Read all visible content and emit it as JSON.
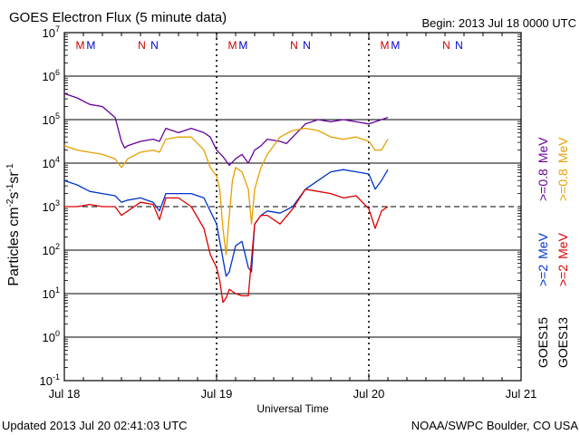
{
  "chart_data": {
    "type": "line",
    "title": "GOES Electron Flux (5 minute data)",
    "begin_label": "Begin: 2013 Jul 18 0000 UTC",
    "xlabel": "Universal Time",
    "ylabel_parts": {
      "pre": "Particles cm",
      "e1": "-2",
      "s": "s",
      "e2": "-1",
      "sr": "sr",
      "e3": "-1"
    },
    "x_ticks": [
      "Jul 18",
      "Jul 19",
      "Jul 20",
      "Jul 21"
    ],
    "xlim": [
      0,
      72
    ],
    "ylim_log10": [
      -1,
      7
    ],
    "y_ticks": [
      {
        "base": "10",
        "exp": "7"
      },
      {
        "base": "10",
        "exp": "6"
      },
      {
        "base": "10",
        "exp": "5"
      },
      {
        "base": "10",
        "exp": "4"
      },
      {
        "base": "10",
        "exp": "3"
      },
      {
        "base": "10",
        "exp": "2"
      },
      {
        "base": "10",
        "exp": "1"
      },
      {
        "base": "10",
        "exp": "0"
      },
      {
        "base": "10",
        "exp": "-1"
      }
    ],
    "threshold_log10": 3,
    "mn_markers": [
      {
        "label": "M",
        "hour": 2.5,
        "color": "#cc0000"
      },
      {
        "label": "M",
        "hour": 4.2,
        "color": "#0000cc"
      },
      {
        "label": "N",
        "hour": 12.2,
        "color": "#cc0000"
      },
      {
        "label": "N",
        "hour": 14.2,
        "color": "#0000cc"
      },
      {
        "label": "M",
        "hour": 26.5,
        "color": "#cc0000"
      },
      {
        "label": "M",
        "hour": 28.2,
        "color": "#0000cc"
      },
      {
        "label": "N",
        "hour": 36.2,
        "color": "#cc0000"
      },
      {
        "label": "N",
        "hour": 38.2,
        "color": "#0000cc"
      },
      {
        "label": "M",
        "hour": 50.5,
        "color": "#cc0000"
      },
      {
        "label": "M",
        "hour": 52.2,
        "color": "#0000cc"
      },
      {
        "label": "N",
        "hour": 60.2,
        "color": "#cc0000"
      },
      {
        "label": "N",
        "hour": 62.2,
        "color": "#0000cc"
      }
    ],
    "series": [
      {
        "name": ">=0.8 MeV GOES15",
        "color": "#660099",
        "x": [
          0,
          2,
          4,
          6,
          8,
          9,
          9.5,
          10,
          12,
          14,
          15,
          16,
          18,
          20,
          22,
          23,
          24,
          25,
          26,
          27,
          28,
          29,
          30,
          31,
          32,
          34,
          35,
          36,
          38,
          40,
          42,
          44,
          46,
          48,
          50,
          51
        ],
        "y": [
          5.6,
          5.5,
          5.35,
          5.3,
          5.05,
          4.5,
          4.35,
          4.4,
          4.5,
          4.55,
          4.5,
          4.8,
          4.7,
          4.8,
          4.7,
          4.6,
          4.3,
          4.15,
          3.95,
          4.1,
          4.2,
          4.0,
          4.3,
          4.4,
          4.55,
          4.5,
          4.45,
          4.6,
          4.9,
          5.0,
          4.95,
          5.0,
          4.95,
          4.9,
          5.0,
          5.05
        ]
      },
      {
        "name": ">=0.8 MeV GOES13",
        "color": "#e6a000",
        "x": [
          0,
          2,
          4,
          6,
          8,
          9,
          9.5,
          10,
          12,
          14,
          15,
          16,
          18,
          20,
          22,
          23,
          24,
          24.5,
          25,
          25.5,
          26,
          26.5,
          27,
          28,
          29,
          29.5,
          30,
          31,
          32,
          34,
          36,
          38,
          40,
          42,
          44,
          46,
          48,
          49,
          50,
          51
        ],
        "y": [
          4.4,
          4.3,
          4.25,
          4.2,
          4.1,
          3.9,
          4.0,
          4.1,
          4.25,
          4.3,
          4.25,
          4.55,
          4.6,
          4.6,
          4.3,
          3.9,
          3.7,
          3.4,
          2.5,
          1.9,
          2.8,
          3.6,
          3.9,
          3.8,
          3.4,
          2.6,
          3.4,
          3.9,
          4.2,
          4.6,
          4.75,
          4.8,
          4.75,
          4.6,
          4.55,
          4.6,
          4.5,
          4.3,
          4.3,
          4.55
        ]
      },
      {
        "name": ">=2 MeV GOES15",
        "color": "#0033cc",
        "x": [
          0,
          2,
          4,
          6,
          8,
          9,
          10,
          12,
          14,
          15,
          16,
          18,
          20,
          22,
          23,
          24,
          25,
          25.5,
          26,
          27,
          28,
          29,
          29.5,
          30,
          31,
          32,
          34,
          36,
          38,
          40,
          42,
          44,
          46,
          48,
          49,
          50,
          51
        ],
        "y": [
          3.6,
          3.5,
          3.35,
          3.3,
          3.25,
          3.1,
          3.15,
          3.2,
          3.1,
          2.9,
          3.3,
          3.3,
          3.3,
          3.2,
          2.9,
          2.6,
          1.8,
          1.4,
          1.5,
          2.1,
          2.2,
          1.6,
          1.5,
          2.6,
          2.8,
          2.9,
          2.85,
          3.0,
          3.4,
          3.6,
          3.8,
          3.85,
          3.8,
          3.75,
          3.4,
          3.6,
          3.85
        ]
      },
      {
        "name": ">=2 MeV GOES13",
        "color": "#dd0000",
        "x": [
          0,
          2,
          4,
          6,
          8,
          9,
          10,
          12,
          14,
          15,
          16,
          18,
          20,
          22,
          23,
          24,
          24.5,
          25,
          25.5,
          26,
          27,
          28,
          29,
          30,
          31,
          32,
          34,
          36,
          38,
          40,
          42,
          44,
          46,
          48,
          49,
          50,
          51
        ],
        "y": [
          3.0,
          3.0,
          3.05,
          3.0,
          3.0,
          2.8,
          2.9,
          3.1,
          3.05,
          2.7,
          3.2,
          3.2,
          3.0,
          2.5,
          1.9,
          1.6,
          1.3,
          0.8,
          0.9,
          1.1,
          1.0,
          0.95,
          0.95,
          2.6,
          2.8,
          2.8,
          2.6,
          2.95,
          3.4,
          3.35,
          3.3,
          3.2,
          3.25,
          2.95,
          2.5,
          2.9,
          3.0
        ]
      }
    ],
    "legend_top": [
      {
        "prefix": ">=0.8",
        "unit": "MeV",
        "color": "#660099"
      },
      {
        "prefix": ">=0.8",
        "unit": "MeV",
        "color": "#e6a000"
      }
    ],
    "legend_bottom": [
      {
        "prefix": ">=2",
        "unit": "MeV",
        "color": "#0033cc"
      },
      {
        "prefix": ">=2",
        "unit": "MeV",
        "color": "#dd0000"
      }
    ],
    "satellites": [
      "GOES15",
      "GOES13"
    ]
  },
  "footer": {
    "updated": "Updated 2013 Jul 20 02:41:03 UTC",
    "credit": "NOAA/SWPC Boulder, CO USA"
  }
}
